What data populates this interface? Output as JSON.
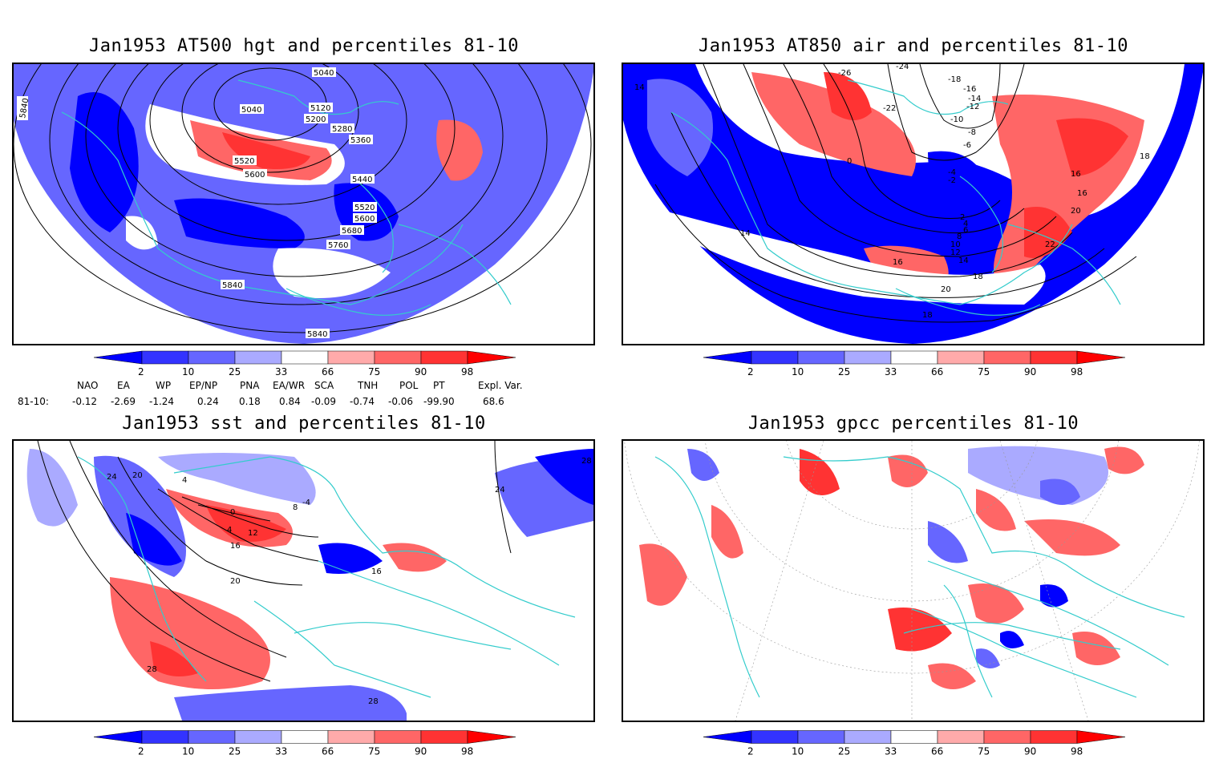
{
  "panels": [
    {
      "title": "Jan1953 AT500 hgt and percentiles 81-10",
      "contour_labels": [
        "5040",
        "5040",
        "5120",
        "5200",
        "5280",
        "5360",
        "5440",
        "5520",
        "5600",
        "5680",
        "5760",
        "5840",
        "5840",
        "5840",
        "5520",
        "5600"
      ]
    },
    {
      "title": "Jan1953 AT850 air and percentiles 81-10",
      "contour_labels": [
        "-26",
        "-24",
        "-22",
        "-18",
        "-16",
        "-14",
        "-12",
        "-10",
        "-8",
        "-6",
        "-4",
        "-2",
        "0",
        "2",
        "4",
        "6",
        "8",
        "10",
        "12",
        "14",
        "16",
        "16",
        "16",
        "18",
        "18",
        "20",
        "20",
        "22",
        "14",
        "14",
        "18"
      ]
    },
    {
      "title": "Jan1953 sst and percentiles 81-10",
      "contour_labels": [
        "24",
        "20",
        "4",
        "0",
        "12",
        "16",
        "20",
        "28",
        "28",
        "24",
        "16",
        "4",
        "8",
        "-4",
        "28"
      ]
    },
    {
      "title": "Jan1953 gpcc percentiles 81-10",
      "contour_labels": []
    }
  ],
  "colorbar": {
    "labels": [
      "2",
      "10",
      "25",
      "33",
      "66",
      "75",
      "90",
      "98"
    ],
    "colors": {
      "blue_dark": "#0000ff",
      "blue_mid": "#3333ff",
      "blue_light": "#6666ff",
      "blue_pale": "#aaaaff",
      "red_pale": "#ffaaaa",
      "red_light": "#ff6666",
      "red_mid": "#ff3333",
      "red_dark": "#ff0000"
    }
  },
  "indices": {
    "headers": [
      "NAO",
      "EA",
      "WP",
      "EP/NP",
      "PNA",
      "EA/WR",
      "SCA",
      "TNH",
      "POL",
      "PT",
      "Expl. Var."
    ],
    "row_label": "81-10:",
    "values": [
      "-0.12",
      "-2.69",
      "-1.24",
      "0.24",
      "0.18",
      "0.84",
      "-0.09",
      "-0.74",
      "-0.06",
      "-99.90",
      "68.6"
    ]
  },
  "colors": {
    "coastline": "#33cccc",
    "contour": "#000000",
    "frame": "#000000"
  }
}
